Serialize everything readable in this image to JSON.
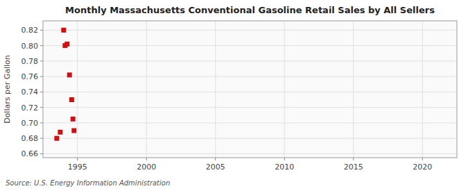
{
  "chart_data": {
    "type": "scatter",
    "title": "Monthly Massachusetts Conventional Gasoline Retail Sales by All Sellers",
    "ylabel": "Dollars per Gallon",
    "annotations": [
      "Source: U.S. Energy Information Administration"
    ],
    "x": [
      1993.5,
      1993.75,
      1994.0,
      1994.1,
      1994.25,
      1994.42,
      1994.58,
      1994.67,
      1994.75
    ],
    "values": [
      0.68,
      0.688,
      0.82,
      0.8,
      0.802,
      0.762,
      0.73,
      0.705,
      0.69
    ],
    "color": "#cc1111",
    "marker": "square",
    "xlim": [
      1992.5,
      2022.5
    ],
    "ylim": [
      0.655,
      0.832
    ],
    "xticks": [
      1995,
      2000,
      2005,
      2010,
      2015,
      2020
    ],
    "yticks": [
      0.66,
      0.68,
      {
        "value": 0.7,
        "label": "0.70"
      },
      0.72,
      0.74,
      0.76,
      0.78,
      {
        "value": 0.8,
        "label": "0.80"
      },
      0.82
    ],
    "grid": true
  }
}
